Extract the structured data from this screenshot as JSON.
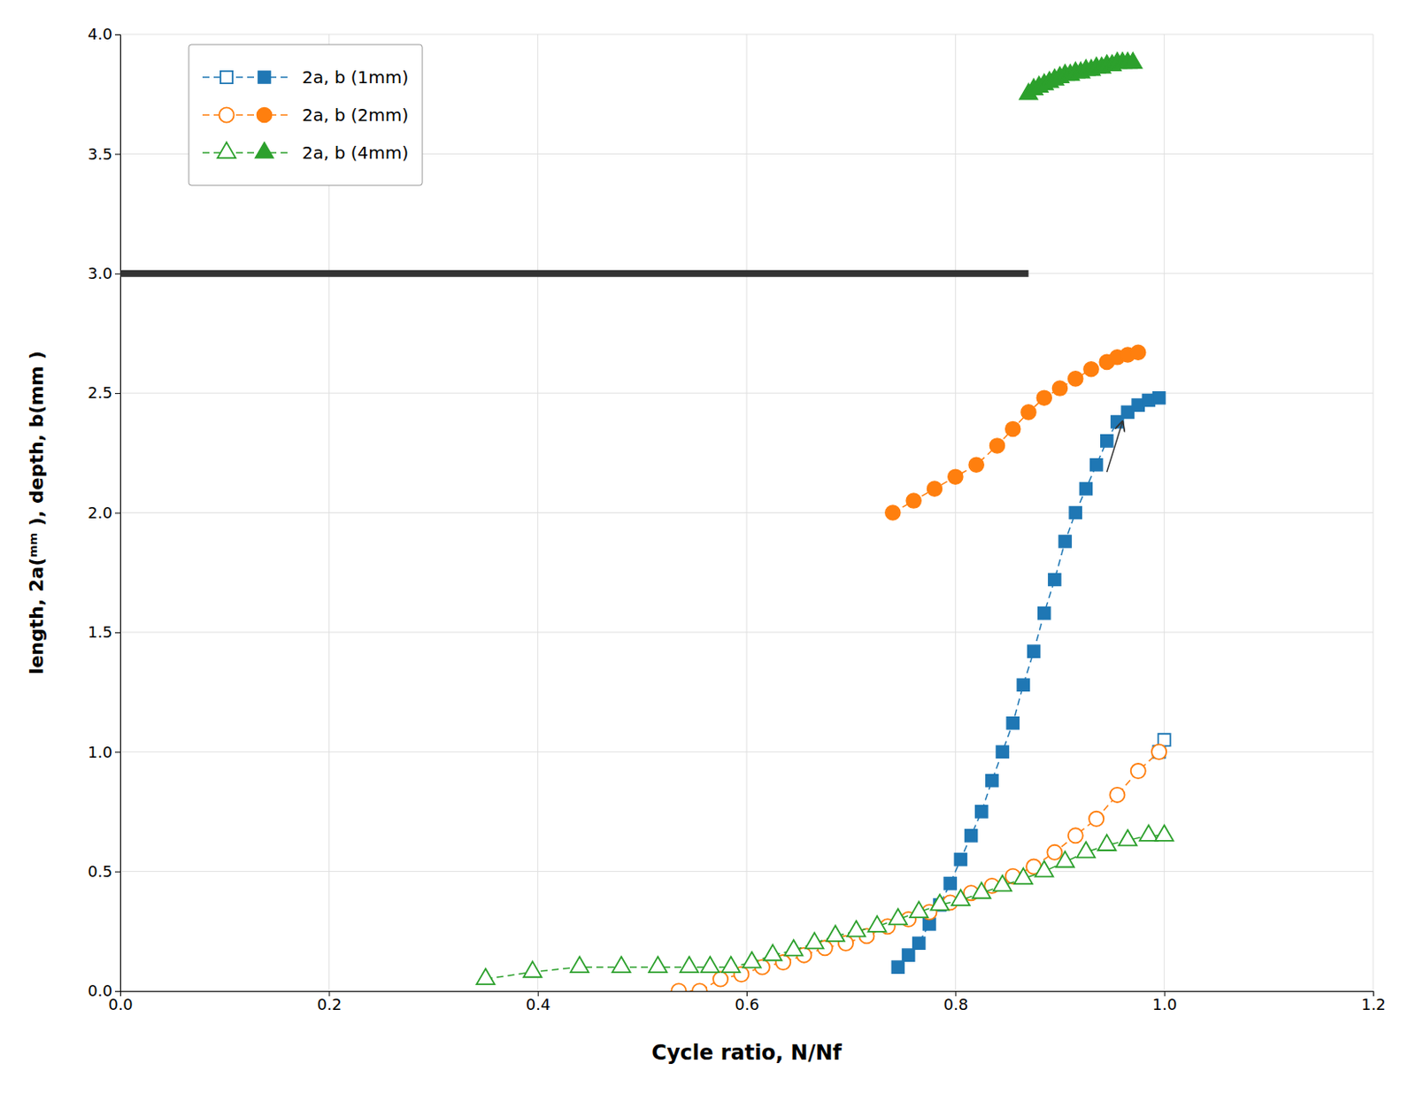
{
  "chart_data": {
    "type": "line",
    "xlabel": "Cycle ratio, N/Nf",
    "ylabel": "length, 2a(ᵐᵐ ), depth, b(mm )",
    "xlim": [
      0.0,
      1.2
    ],
    "ylim": [
      0.0,
      4.0
    ],
    "xticks": [
      {
        "value": 0.0,
        "label": "0.0"
      },
      0.2,
      0.4,
      0.6,
      0.8,
      {
        "value": 1.0,
        "label": "1.0"
      },
      {
        "value": 1.2,
        "label": "1.2"
      }
    ],
    "yticks": [
      {
        "value": 0.0,
        "label": "0.0"
      },
      0.5,
      {
        "value": 1.0,
        "label": "1.0"
      },
      1.5,
      {
        "value": 2.0,
        "label": "2.0"
      },
      2.5,
      {
        "value": 3.0,
        "label": "3.0"
      },
      3.5,
      {
        "value": 4.0,
        "label": "4.0"
      }
    ],
    "grid": true,
    "legend": "upper left",
    "series": [
      {
        "name": "2a, b (1mm)",
        "marker": "square",
        "line_style": "dashed",
        "x": [
          0.745,
          0.755,
          0.765,
          0.775,
          0.785,
          0.795,
          0.805,
          0.815,
          0.825,
          0.835,
          0.845,
          0.855,
          0.865,
          0.875,
          0.885,
          0.895,
          0.905,
          0.915,
          0.925,
          0.935,
          0.945,
          0.955,
          0.965,
          0.975,
          0.985,
          0.995
        ],
        "values": [
          0.1,
          0.15,
          0.2,
          0.28,
          0.36,
          0.45,
          0.55,
          0.65,
          0.75,
          0.88,
          1.0,
          1.12,
          1.28,
          1.42,
          1.58,
          1.72,
          1.88,
          2.0,
          2.1,
          2.2,
          2.3,
          2.38,
          2.42,
          2.45,
          2.47,
          2.48
        ]
      },
      {
        "name": "2a, b (1mm)",
        "marker": "open-square",
        "line_style": "dashed",
        "x": [
          0.995,
          1.0
        ],
        "values": [
          1.0,
          1.05
        ]
      },
      {
        "name": "2a, b (2mm)",
        "marker": "circle",
        "line_style": "dashed",
        "x": [
          0.74,
          0.76,
          0.78,
          0.8,
          0.82,
          0.84,
          0.855,
          0.87,
          0.885,
          0.9,
          0.915,
          0.93,
          0.945,
          0.955,
          0.965,
          0.975
        ],
        "values": [
          2.0,
          2.05,
          2.1,
          2.15,
          2.2,
          2.28,
          2.35,
          2.42,
          2.48,
          2.52,
          2.56,
          2.6,
          2.63,
          2.65,
          2.66,
          2.67
        ]
      },
      {
        "name": "2a, b (2mm)",
        "marker": "open-circle",
        "line_style": "dashed",
        "x": [
          0.535,
          0.555,
          0.575,
          0.595,
          0.615,
          0.635,
          0.655,
          0.675,
          0.695,
          0.715,
          0.735,
          0.755,
          0.775,
          0.795,
          0.815,
          0.835,
          0.855,
          0.875,
          0.895,
          0.915,
          0.935,
          0.955,
          0.975,
          0.995
        ],
        "values": [
          0.0,
          0.0,
          0.05,
          0.07,
          0.1,
          0.12,
          0.15,
          0.18,
          0.2,
          0.23,
          0.27,
          0.3,
          0.33,
          0.37,
          0.41,
          0.44,
          0.48,
          0.52,
          0.58,
          0.65,
          0.72,
          0.82,
          0.92,
          1.0
        ]
      },
      {
        "name": "2a, b (4mm)",
        "marker": "triangle",
        "line_style": "solid",
        "x": [
          0.87,
          0.875,
          0.88,
          0.885,
          0.89,
          0.895,
          0.9,
          0.905,
          0.91,
          0.915,
          0.92,
          0.925,
          0.93,
          0.935,
          0.94,
          0.945,
          0.95,
          0.955,
          0.96,
          0.965,
          0.97
        ],
        "values": [
          3.75,
          3.77,
          3.78,
          3.79,
          3.8,
          3.81,
          3.82,
          3.83,
          3.83,
          3.84,
          3.84,
          3.85,
          3.85,
          3.86,
          3.86,
          3.87,
          3.87,
          3.88,
          3.88,
          3.88,
          3.88
        ]
      },
      {
        "name": "2a, b (4mm)",
        "marker": "open-triangle",
        "line_style": "dashed",
        "x": [
          0.35,
          0.395,
          0.44,
          0.48,
          0.515,
          0.545,
          0.565,
          0.585,
          0.605,
          0.625,
          0.645,
          0.665,
          0.685,
          0.705,
          0.725,
          0.745,
          0.765,
          0.785,
          0.805,
          0.825,
          0.845,
          0.865,
          0.885,
          0.905,
          0.925,
          0.945,
          0.965,
          0.985,
          1.0
        ],
        "values": [
          0.05,
          0.08,
          0.1,
          0.1,
          0.1,
          0.1,
          0.1,
          0.1,
          0.12,
          0.15,
          0.17,
          0.2,
          0.23,
          0.25,
          0.27,
          0.3,
          0.33,
          0.36,
          0.38,
          0.41,
          0.44,
          0.47,
          0.5,
          0.54,
          0.58,
          0.61,
          0.63,
          0.65,
          0.65
        ]
      },
      {
        "marker": "none",
        "line_style": "thick",
        "x": [
          0.0,
          0.87
        ],
        "values": [
          3.0,
          3.0
        ]
      }
    ],
    "arrows": [
      {
        "x": 0.96,
        "y": 2.38,
        "x_from": 0.945,
        "y_from": 2.17
      }
    ]
  }
}
